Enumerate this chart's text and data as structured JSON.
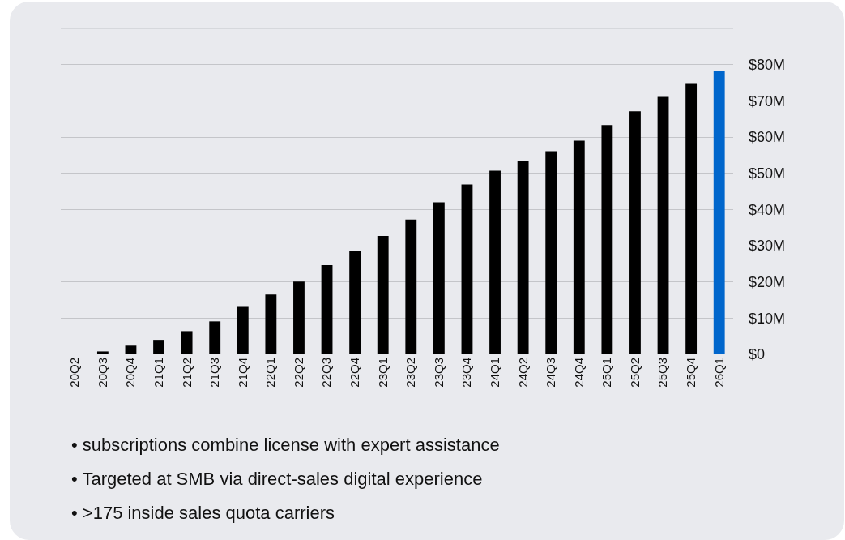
{
  "chart_data": {
    "type": "bar",
    "categories": [
      "20Q2",
      "20Q3",
      "20Q4",
      "21Q1",
      "21Q2",
      "21Q3",
      "21Q4",
      "22Q1",
      "22Q2",
      "22Q3",
      "22Q4",
      "23Q1",
      "23Q2",
      "23Q3",
      "23Q4",
      "24Q1",
      "24Q2",
      "24Q3",
      "24Q4",
      "25Q1",
      "25Q2",
      "25Q3",
      "25Q4",
      "26Q1"
    ],
    "values": [
      0.2,
      0.8,
      2.4,
      4.0,
      6.4,
      9.1,
      13.1,
      16.5,
      20.1,
      24.6,
      28.6,
      32.7,
      37.2,
      42.0,
      46.9,
      50.7,
      53.4,
      56.1,
      59.0,
      63.3,
      67.1,
      71.1,
      74.9,
      78.3
    ],
    "colors": [
      "#000000",
      "#000000",
      "#000000",
      "#000000",
      "#000000",
      "#000000",
      "#000000",
      "#000000",
      "#000000",
      "#000000",
      "#000000",
      "#000000",
      "#000000",
      "#000000",
      "#000000",
      "#000000",
      "#000000",
      "#000000",
      "#000000",
      "#000000",
      "#000000",
      "#000000",
      "#000000",
      "#0066cc"
    ],
    "ylim": [
      0,
      90
    ],
    "yticks": [
      {
        "value": 0,
        "label": "$0"
      },
      {
        "value": 10,
        "label": "$10M"
      },
      {
        "value": 20,
        "label": "$20M"
      },
      {
        "value": 30,
        "label": "$30M"
      },
      {
        "value": 40,
        "label": "$40M"
      },
      {
        "value": 50,
        "label": "$50M"
      },
      {
        "value": 60,
        "label": "$60M"
      },
      {
        "value": 70,
        "label": "$70M"
      },
      {
        "value": 80,
        "label": "$80M"
      },
      {
        "value": 90,
        "label": null
      }
    ],
    "grid": "y",
    "annotations": [
      "• subscriptions combine license with expert assistance",
      "• Targeted at SMB via direct-sales digital experience",
      "• >175 inside sales quota carriers"
    ]
  }
}
